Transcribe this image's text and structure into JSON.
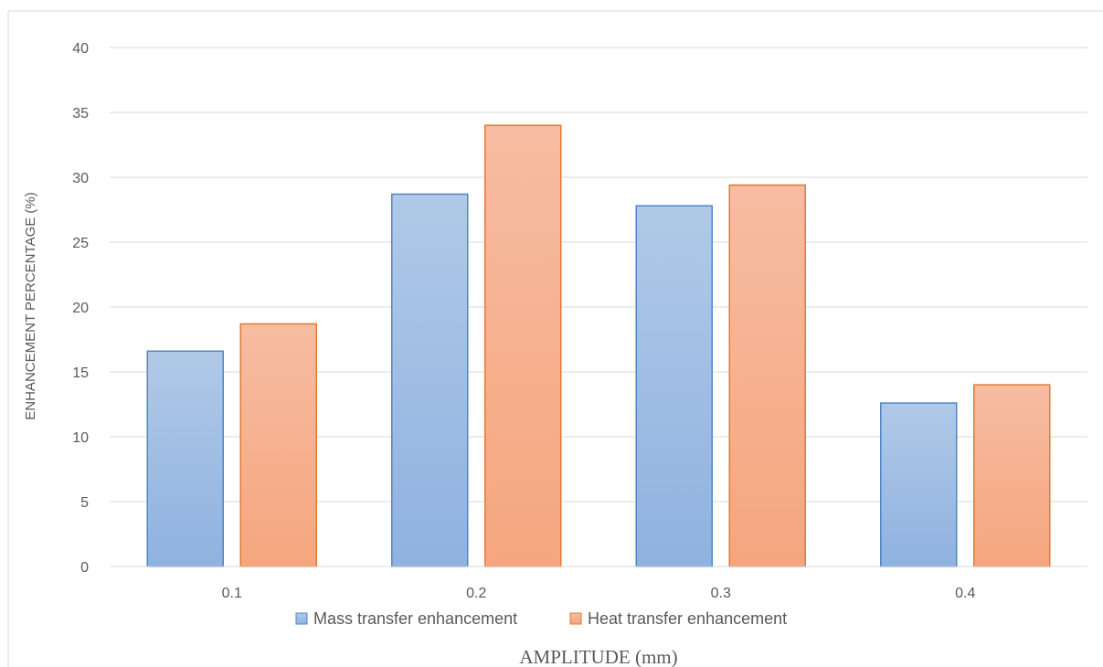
{
  "chart_data": {
    "type": "bar",
    "categories": [
      "0.1",
      "0.2",
      "0.3",
      "0.4"
    ],
    "series": [
      {
        "name": "Mass transfer enhancement",
        "values": [
          16.6,
          28.7,
          27.8,
          12.6
        ],
        "fill_top": "#b0c9e8",
        "fill_bottom": "#8fb2e0",
        "stroke": "#4f86c6"
      },
      {
        "name": "Heat transfer enhancement",
        "values": [
          18.7,
          34.0,
          29.4,
          14.0
        ],
        "fill_top": "#f7bca2",
        "fill_bottom": "#f5a67e",
        "stroke": "#e07b32"
      }
    ],
    "title": "",
    "xlabel": "AMPLITUDE (mm)",
    "ylabel": "ENHANCEMENT PERCENTAGE (%)",
    "ylim": [
      0,
      40
    ],
    "yticks": [
      "0",
      "5",
      "10",
      "15",
      "20",
      "25",
      "30",
      "35",
      "40"
    ],
    "grid": true,
    "legend_position": "bottom",
    "colors": {
      "grid": "#d9d9d9",
      "text": "#595959",
      "border": "#d9d9d9"
    }
  }
}
